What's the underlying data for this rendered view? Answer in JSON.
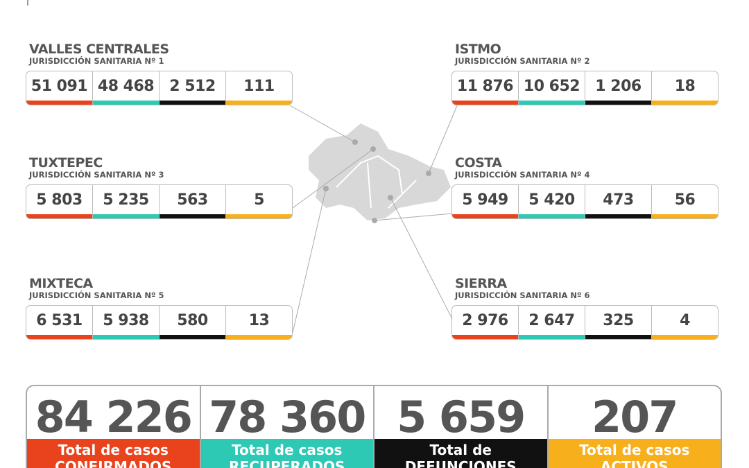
{
  "regions": [
    {
      "name": "VALLES CENTRALES",
      "jurisdiction": "JURISDICCIÓN SANITARIA Nº 1",
      "values": [
        "51 091",
        "48 468",
        "2 512",
        "111"
      ]
    },
    {
      "name": "TUXTEPEC",
      "jurisdiction": "JURISDICCIÓN SANITARIA Nº 3",
      "values": [
        "5 803",
        "5 235",
        "563",
        "5"
      ]
    },
    {
      "name": "MIXTECA",
      "jurisdiction": "JURISDICCIÓN SANITARIA Nº 5",
      "values": [
        "6 531",
        "5 938",
        "580",
        "13"
      ]
    },
    {
      "name": "ISTMO",
      "jurisdiction": "JURISDICCIÓN SANITARIA Nº 2",
      "values": [
        "11 876",
        "10 652",
        "1 206",
        "18"
      ]
    },
    {
      "name": "COSTA",
      "jurisdiction": "JURISDICCIÓN SANITARIA Nº 4",
      "values": [
        "5 949",
        "5 420",
        "473",
        "56"
      ]
    },
    {
      "name": "SIERRA",
      "jurisdiction": "JURISDICCIÓN SANITARIA Nº 6",
      "values": [
        "2 976",
        "2 647",
        "325",
        "4"
      ]
    }
  ],
  "totals": [
    {
      "value": "84 226",
      "label": "Total de casos",
      "label2": "CONFIRMADOS"
    },
    {
      "value": "78 360",
      "label": "Total de casos",
      "label2": "RECUPERADOS"
    },
    {
      "value": "5 659",
      "label": "Total de",
      "label2": "DEFUNCIONES"
    },
    {
      "value": "207",
      "label": "Total de casos",
      "label2": "ACTIVOS"
    }
  ]
}
